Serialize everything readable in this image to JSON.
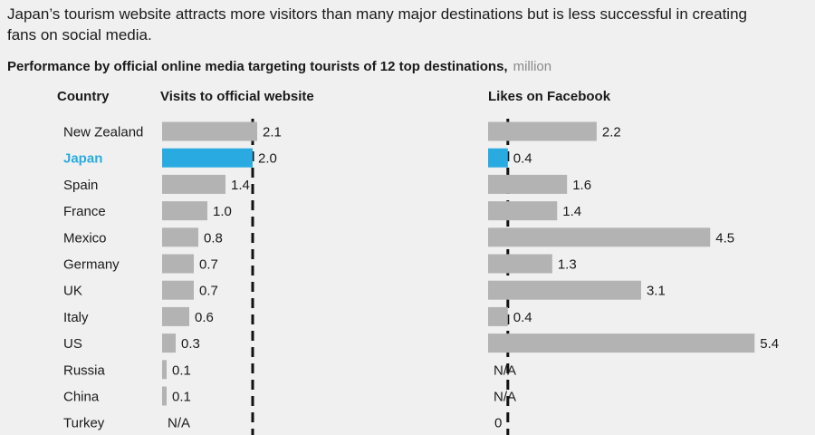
{
  "title": "Japan’s tourism website attracts more visitors than many major destinations but is less successful in creating fans on social media.",
  "subtitle": "Performance by official online media targeting tourists of 12 top destinations,",
  "unit": "million",
  "headers": {
    "country": "Country",
    "visits": "Visits to official website",
    "likes": "Likes on Facebook"
  },
  "colors": {
    "bar": "#b3b3b3",
    "highlight": "#29abe2",
    "dashed_line": "#111111"
  },
  "highlight_country": "Japan",
  "chart_data": [
    {
      "type": "bar",
      "orientation": "horizontal",
      "title": "Visits to official website",
      "categories": [
        "New Zealand",
        "Japan",
        "Spain",
        "France",
        "Mexico",
        "Germany",
        "UK",
        "Italy",
        "US",
        "Russia",
        "China",
        "Turkey"
      ],
      "values": [
        2.1,
        2.0,
        1.4,
        1.0,
        0.8,
        0.7,
        0.7,
        0.6,
        0.3,
        0.1,
        0.1,
        null
      ],
      "labels": [
        "2.1",
        "2.0",
        "1.4",
        "1.0",
        "0.8",
        "0.7",
        "0.7",
        "0.6",
        "0.3",
        "0.1",
        "0.1",
        "N/A"
      ],
      "reference_line": 2.0
    },
    {
      "type": "bar",
      "orientation": "horizontal",
      "title": "Likes on Facebook",
      "categories": [
        "New Zealand",
        "Japan",
        "Spain",
        "France",
        "Mexico",
        "Germany",
        "UK",
        "Italy",
        "US",
        "Russia",
        "China",
        "Turkey"
      ],
      "values": [
        2.2,
        0.4,
        1.6,
        1.4,
        4.5,
        1.3,
        3.1,
        0.4,
        5.4,
        null,
        null,
        0
      ],
      "labels": [
        "2.2",
        "0.4",
        "1.6",
        "1.4",
        "4.5",
        "1.3",
        "3.1",
        "0.4",
        "5.4",
        "N/A",
        "N/A",
        "0"
      ],
      "reference_line": 0.4
    }
  ]
}
